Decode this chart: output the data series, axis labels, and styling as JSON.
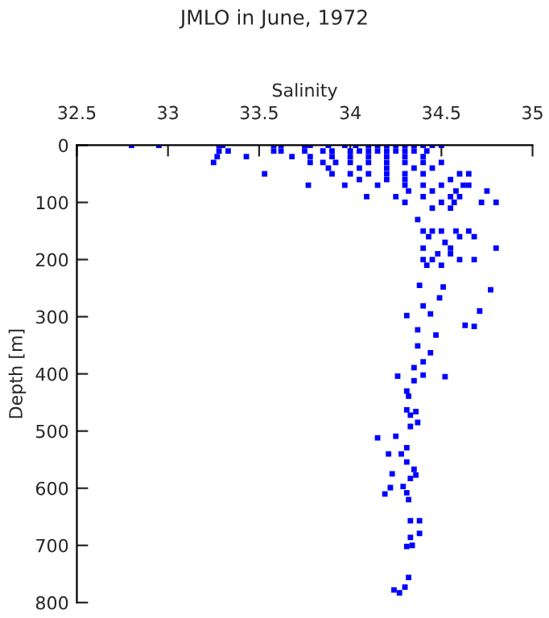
{
  "chart_data": {
    "type": "scatter",
    "title": "JMLO in June, 1972",
    "xlabel": "Salinity",
    "ylabel": "Depth [m]",
    "xlim": [
      32.5,
      35
    ],
    "xticks": [
      32.5,
      33,
      33.5,
      34,
      34.5,
      35
    ],
    "ylim": [
      800,
      0
    ],
    "yticks": [
      0,
      100,
      200,
      300,
      400,
      500,
      600,
      700,
      800
    ],
    "grid": false,
    "marker": "square",
    "series": [
      {
        "color": "#0000ff",
        "x": [
          32.8,
          32.95,
          33.28,
          33.3,
          33.58,
          33.62,
          33.75,
          33.78,
          33.88,
          33.97,
          34.03,
          34.1,
          34.15,
          34.2,
          34.25,
          34.3,
          34.35,
          34.4,
          34.45,
          34.5,
          33.28,
          33.33,
          33.58,
          33.62,
          33.75,
          33.85,
          33.9,
          34.0,
          34.05,
          34.1,
          34.15,
          34.2,
          34.25,
          34.3,
          34.35,
          34.42,
          33.27,
          33.43,
          33.68,
          33.78,
          33.9,
          34.0,
          34.1,
          34.2,
          34.3,
          34.4,
          33.25,
          33.78,
          33.85,
          33.92,
          34.0,
          34.1,
          34.2,
          34.3,
          34.4,
          34.5,
          33.88,
          34.05,
          34.2,
          34.35,
          34.45,
          33.53,
          33.9,
          34.0,
          34.1,
          34.2,
          34.3,
          34.4,
          34.6,
          34.65,
          34.05,
          34.2,
          34.3,
          34.55,
          33.77,
          33.97,
          34.15,
          34.3,
          34.4,
          34.5,
          34.62,
          34.65,
          34.32,
          34.45,
          34.58,
          34.75,
          34.09,
          34.25,
          34.4,
          34.55,
          34.6,
          34.3,
          34.5,
          34.57,
          34.72,
          34.8,
          34.45,
          34.55,
          34.37,
          34.4,
          34.45,
          34.5,
          34.58,
          34.65,
          34.43,
          34.6,
          34.68,
          34.52,
          34.4,
          34.55,
          34.8,
          34.48,
          34.55,
          34.4,
          34.45,
          34.6,
          34.68,
          34.42,
          34.5,
          34.38,
          34.77,
          34.51,
          34.49,
          34.4,
          34.31,
          34.44,
          34.71,
          34.63,
          34.68,
          34.37,
          34.47,
          34.37,
          34.44,
          34.4,
          34.35,
          34.26,
          34.4,
          34.52,
          34.35,
          34.31,
          34.32,
          34.31,
          34.36,
          34.33,
          34.33,
          34.37,
          34.15,
          34.25,
          34.31,
          34.21,
          34.28,
          34.31,
          34.35,
          34.36,
          34.23,
          34.33,
          34.22,
          34.29,
          34.31,
          34.19,
          34.32,
          34.33,
          34.38,
          34.38,
          34.33,
          34.31,
          34.34,
          34.32,
          34.3,
          34.24,
          34.27
        ],
        "values": [
          0,
          0,
          0,
          0,
          0,
          0,
          0,
          0,
          0,
          0,
          0,
          0,
          0,
          0,
          0,
          0,
          0,
          0,
          0,
          0,
          10,
          10,
          10,
          10,
          10,
          10,
          10,
          10,
          10,
          10,
          10,
          10,
          10,
          10,
          10,
          10,
          20,
          20,
          20,
          20,
          20,
          20,
          20,
          20,
          20,
          20,
          30,
          30,
          30,
          30,
          30,
          30,
          30,
          30,
          30,
          30,
          40,
          40,
          40,
          40,
          40,
          50,
          50,
          50,
          50,
          50,
          50,
          50,
          50,
          50,
          60,
          60,
          60,
          60,
          70,
          70,
          70,
          70,
          70,
          70,
          70,
          70,
          80,
          80,
          80,
          80,
          90,
          90,
          90,
          90,
          90,
          100,
          100,
          100,
          100,
          100,
          110,
          110,
          130,
          150,
          150,
          150,
          150,
          150,
          160,
          160,
          160,
          170,
          180,
          180,
          180,
          190,
          190,
          200,
          200,
          200,
          200,
          210,
          210,
          245,
          253,
          248,
          267,
          281,
          298,
          295,
          290,
          315,
          317,
          323,
          332,
          351,
          363,
          379,
          389,
          404,
          402,
          405,
          412,
          430,
          439,
          463,
          466,
          472,
          492,
          485,
          512,
          509,
          529,
          540,
          540,
          554,
          567,
          577,
          575,
          583,
          599,
          597,
          608,
          610,
          620,
          657,
          657,
          679,
          686,
          702,
          700,
          756,
          773,
          778,
          783
        ]
      }
    ]
  }
}
